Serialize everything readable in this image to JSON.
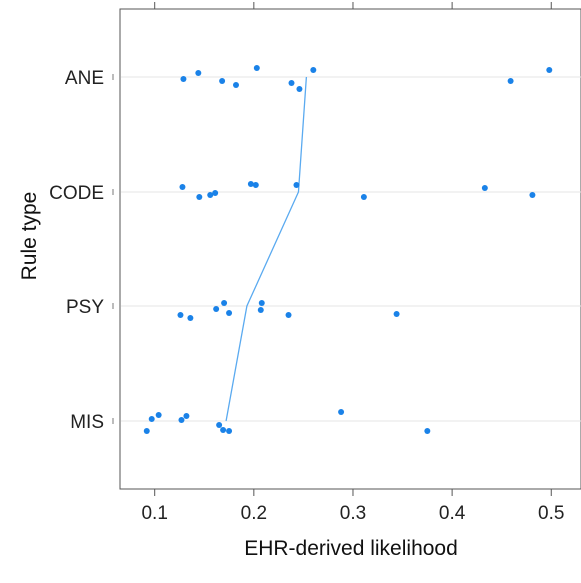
{
  "chart_data": {
    "type": "scatter",
    "title": "",
    "xlabel": "EHR-derived likelihood",
    "ylabel": "Rule type",
    "xlim": [
      0.065,
      0.53
    ],
    "x_ticks": [
      0.1,
      0.2,
      0.3,
      0.4,
      0.5
    ],
    "x_tick_labels": [
      "0.1",
      "0.2",
      "0.3",
      "0.4",
      "0.5"
    ],
    "categories": [
      "ANE",
      "CODE",
      "PSY",
      "MIS"
    ],
    "grid": "horizontal-at-categories",
    "point_color": "#1a82e8",
    "line_color": "#5aaaf0",
    "series": [
      {
        "category": "ANE",
        "points": [
          {
            "x": 0.129,
            "jitter": -0.02
          },
          {
            "x": 0.144,
            "jitter": 0.04
          },
          {
            "x": 0.168,
            "jitter": -0.04
          },
          {
            "x": 0.182,
            "jitter": -0.08
          },
          {
            "x": 0.203,
            "jitter": 0.09
          },
          {
            "x": 0.238,
            "jitter": -0.06
          },
          {
            "x": 0.246,
            "jitter": -0.12
          },
          {
            "x": 0.26,
            "jitter": 0.07
          },
          {
            "x": 0.459,
            "jitter": -0.04
          },
          {
            "x": 0.498,
            "jitter": 0.07
          }
        ]
      },
      {
        "category": "CODE",
        "points": [
          {
            "x": 0.128,
            "jitter": 0.05
          },
          {
            "x": 0.145,
            "jitter": -0.05
          },
          {
            "x": 0.156,
            "jitter": -0.03
          },
          {
            "x": 0.161,
            "jitter": -0.01
          },
          {
            "x": 0.197,
            "jitter": 0.08
          },
          {
            "x": 0.202,
            "jitter": 0.07
          },
          {
            "x": 0.243,
            "jitter": 0.07
          },
          {
            "x": 0.311,
            "jitter": -0.05
          },
          {
            "x": 0.433,
            "jitter": 0.04
          },
          {
            "x": 0.481,
            "jitter": -0.03
          }
        ]
      },
      {
        "category": "PSY",
        "points": [
          {
            "x": 0.126,
            "jitter": -0.09
          },
          {
            "x": 0.136,
            "jitter": -0.12
          },
          {
            "x": 0.162,
            "jitter": -0.03
          },
          {
            "x": 0.17,
            "jitter": 0.03
          },
          {
            "x": 0.175,
            "jitter": -0.07
          },
          {
            "x": 0.207,
            "jitter": -0.04
          },
          {
            "x": 0.208,
            "jitter": 0.03
          },
          {
            "x": 0.235,
            "jitter": -0.09
          },
          {
            "x": 0.344,
            "jitter": -0.08
          }
        ]
      },
      {
        "category": "MIS",
        "points": [
          {
            "x": 0.092,
            "jitter": -0.1
          },
          {
            "x": 0.097,
            "jitter": 0.02
          },
          {
            "x": 0.104,
            "jitter": 0.06
          },
          {
            "x": 0.127,
            "jitter": 0.01
          },
          {
            "x": 0.132,
            "jitter": 0.05
          },
          {
            "x": 0.165,
            "jitter": -0.04
          },
          {
            "x": 0.169,
            "jitter": -0.09
          },
          {
            "x": 0.175,
            "jitter": -0.1
          },
          {
            "x": 0.288,
            "jitter": 0.09
          },
          {
            "x": 0.375,
            "jitter": -0.1
          }
        ]
      }
    ],
    "median_line": [
      {
        "category": "ANE",
        "x": 0.253
      },
      {
        "category": "CODE",
        "x": 0.245
      },
      {
        "category": "PSY",
        "x": 0.193
      },
      {
        "category": "MIS",
        "x": 0.172
      }
    ]
  }
}
